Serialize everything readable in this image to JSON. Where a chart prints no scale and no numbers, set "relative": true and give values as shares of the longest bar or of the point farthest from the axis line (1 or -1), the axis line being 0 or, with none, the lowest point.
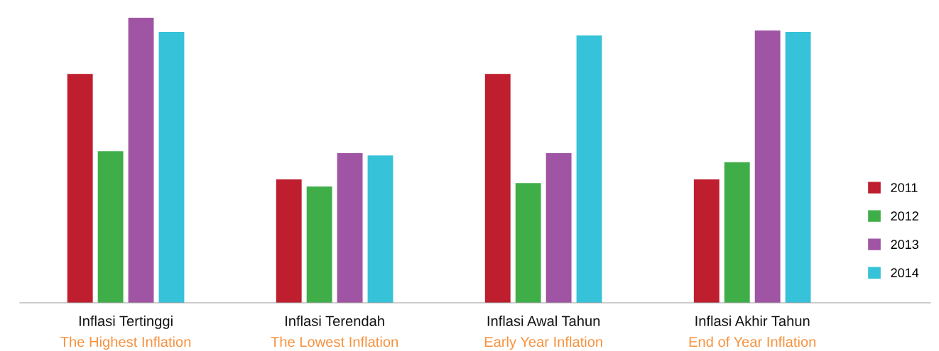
{
  "chart_data": {
    "type": "bar",
    "relative": true,
    "legend": "right",
    "categories": [
      "Inflasi Tertinggi\nThe Highest Inflation",
      "Inflasi Terendah\nThe Lowest Inflation",
      "Inflasi Awal Tahun\nEarly Year Inflation",
      "Inflasi Akhir Tahun\nEnd of Year Inflation"
    ],
    "series": [
      {
        "name": "2011",
        "color": "#be1e2d",
        "values": [
          0.803,
          0.433,
          0.803,
          0.433
        ]
      },
      {
        "name": "2012",
        "color": "#3fae49",
        "values": [
          0.532,
          0.408,
          0.42,
          0.493
        ]
      },
      {
        "name": "2013",
        "color": "#a054a4",
        "values": [
          1,
          0.525,
          0.525,
          0.955
        ]
      },
      {
        "name": "2014",
        "color": "#36c2d9",
        "values": [
          0.95,
          0.517,
          0.938,
          0.95
        ]
      }
    ]
  }
}
